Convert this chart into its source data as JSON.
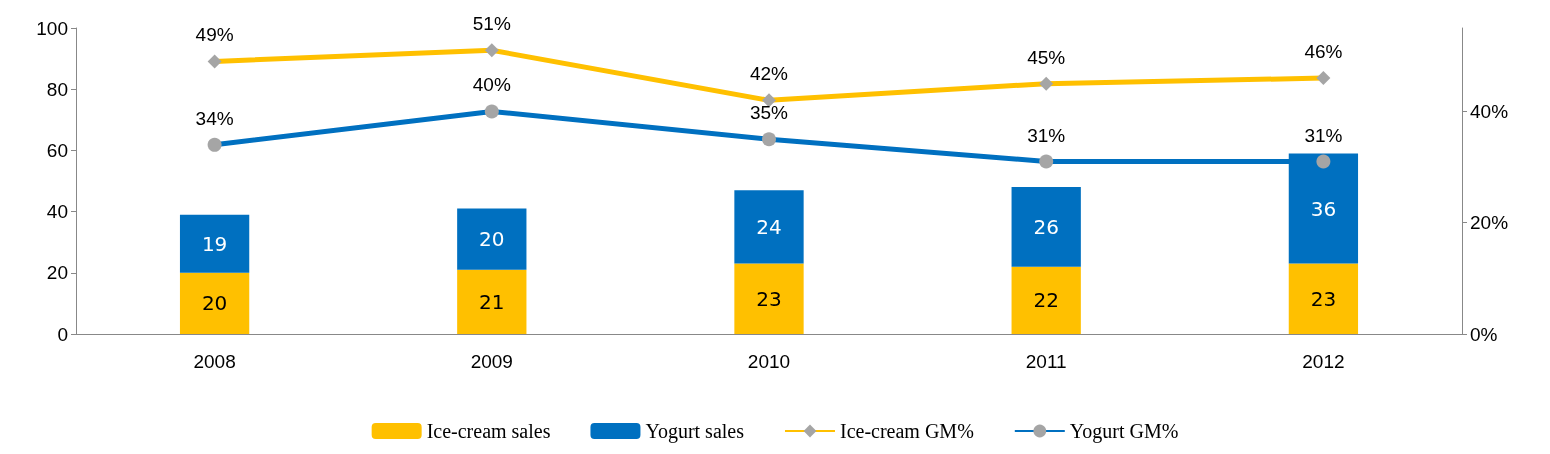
{
  "chart_data": {
    "type": "bar",
    "stacked": true,
    "categories": [
      "2008",
      "2009",
      "2010",
      "2011",
      "2012"
    ],
    "series": [
      {
        "name": "Ice-cream sales",
        "color": "#ffc000",
        "values": [
          20,
          21,
          23,
          22,
          23
        ],
        "value_labels": [
          "20",
          "21",
          "23",
          "22",
          "23"
        ]
      },
      {
        "name": "Yogurt sales",
        "color": "#0070c0",
        "values": [
          19,
          20,
          24,
          26,
          36
        ],
        "value_labels": [
          "19",
          "20",
          "24",
          "26",
          "36"
        ]
      },
      {
        "name": "Ice-cream GM%",
        "type": "line",
        "axis": "y2",
        "marker": "diamond",
        "color": "#ffc000",
        "values": [
          49,
          51,
          42,
          45,
          46
        ],
        "value_labels": [
          "49%",
          "51%",
          "42%",
          "45%",
          "46%"
        ]
      },
      {
        "name": "Yogurt GM%",
        "type": "line",
        "axis": "y2",
        "marker": "circle",
        "color": "#0070c0",
        "values": [
          34,
          40,
          35,
          31,
          31
        ],
        "value_labels": [
          "34%",
          "40%",
          "35%",
          "31%",
          "31%"
        ]
      }
    ],
    "ylim": [
      0,
      100
    ],
    "yticks": [
      0,
      20,
      40,
      60,
      80,
      100
    ],
    "y2lim": [
      0,
      55
    ],
    "y2ticks": [
      {
        "value": 0,
        "label": "0%"
      },
      {
        "value": 20,
        "label": "20%"
      },
      {
        "value": 40,
        "label": "40%"
      }
    ],
    "legend": "bottom",
    "grid": false
  }
}
